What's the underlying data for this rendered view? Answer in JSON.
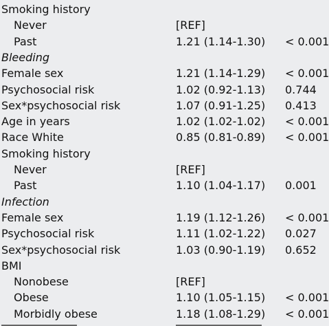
{
  "rows": [
    {
      "label": "Smoking history",
      "or": "",
      "p": "",
      "kind": "header"
    },
    {
      "label": "Never",
      "or": "[REF]",
      "p": "",
      "kind": "indent"
    },
    {
      "label": "Past",
      "or": "1.21 (1.14-1.30)",
      "p": "< 0.001",
      "kind": "indent"
    },
    {
      "label": "Bleeding",
      "or": "",
      "p": "",
      "kind": "section"
    },
    {
      "label": "Female sex",
      "or": "1.21 (1.14-1.29)",
      "p": "< 0.001",
      "kind": "plain"
    },
    {
      "label": "Psychosocial risk",
      "or": "1.02 (0.92-1.13)",
      "p": "0.744",
      "kind": "plain"
    },
    {
      "label": "Sex*psychosocial risk",
      "or": "1.07 (0.91-1.25)",
      "p": "0.413",
      "kind": "plain"
    },
    {
      "label": "Age in years",
      "or": "1.02 (1.02-1.02)",
      "p": "< 0.001",
      "kind": "plain"
    },
    {
      "label": "Race White",
      "or": "0.85 (0.81-0.89)",
      "p": "< 0.001",
      "kind": "plain"
    },
    {
      "label": "Smoking history",
      "or": "",
      "p": "",
      "kind": "header"
    },
    {
      "label": "Never",
      "or": "[REF]",
      "p": "",
      "kind": "indent"
    },
    {
      "label": "Past",
      "or": "1.10 (1.04-1.17)",
      "p": "0.001",
      "kind": "indent"
    },
    {
      "label": "Infection",
      "or": "",
      "p": "",
      "kind": "section"
    },
    {
      "label": "Female sex",
      "or": "1.19 (1.12-1.26)",
      "p": "< 0.001",
      "kind": "plain"
    },
    {
      "label": "Psychosocial risk",
      "or": "1.11 (1.02-1.22)",
      "p": "0.027",
      "kind": "plain"
    },
    {
      "label": "Sex*psychosocial risk",
      "or": "1.03 (0.90-1.19)",
      "p": "0.652",
      "kind": "plain"
    },
    {
      "label": "BMI",
      "or": "",
      "p": "",
      "kind": "header"
    },
    {
      "label": "Nonobese",
      "or": "[REF]",
      "p": "",
      "kind": "indent"
    },
    {
      "label": "Obese",
      "or": "1.10 (1.05-1.15)",
      "p": "< 0.001",
      "kind": "indent"
    },
    {
      "label": "Morbidly obese",
      "or": "1.18 (1.08-1.29)",
      "p": "< 0.001",
      "kind": "indent"
    }
  ]
}
